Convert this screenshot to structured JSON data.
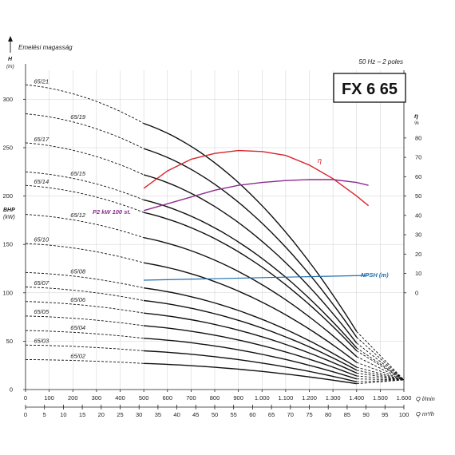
{
  "chart_data": {
    "type": "line",
    "title": "FX 6 65",
    "subtitle": "50 Hz – 2 poles",
    "y_title": "Emelési magasság",
    "y_axis_label": "H",
    "y_axis_unit": "(m)",
    "bhp_label": "BHP",
    "bhp_unit": "(kW)",
    "eta_label": "η",
    "eta_unit": "%",
    "x_axis_label": "Q l/min",
    "x2_axis_label": "Q m³/h",
    "ylim": [
      0,
      330
    ],
    "xlim": [
      0,
      1600
    ],
    "x2lim": [
      0,
      100
    ],
    "y_ticks": [
      0,
      50,
      100,
      150,
      200,
      250,
      300
    ],
    "x_ticks": [
      0,
      100,
      200,
      300,
      400,
      500,
      600,
      700,
      800,
      900,
      1000,
      1100,
      1200,
      1300,
      1400,
      1500,
      1600
    ],
    "x_tick_labels": [
      "0",
      "100",
      "200",
      "300",
      "400",
      "500",
      "600",
      "700",
      "800",
      "900",
      "1.000",
      "1.100",
      "1.200",
      "1.300",
      "1.400",
      "1.500",
      "1.600"
    ],
    "x2_ticks": [
      0,
      5,
      10,
      15,
      20,
      25,
      30,
      35,
      40,
      45,
      50,
      55,
      60,
      65,
      70,
      75,
      80,
      85,
      90,
      95,
      100
    ],
    "eta_ticks": [
      0,
      10,
      20,
      30,
      40,
      50,
      60,
      70,
      80
    ],
    "eta_scale": {
      "zero_at_H": 100,
      "H_per_percent": 2
    },
    "operating_range": {
      "q_min": 500,
      "q_max": 1400
    },
    "series": [
      {
        "name": "65/21",
        "shutoff": 315,
        "at_500": 275,
        "at_1400": 60
      },
      {
        "name": "65/19",
        "shutoff": 285,
        "at_500": 249,
        "at_1400": 54
      },
      {
        "name": "65/17",
        "shutoff": 255,
        "at_500": 222,
        "at_1400": 48
      },
      {
        "name": "65/15",
        "shutoff": 225,
        "at_500": 196,
        "at_1400": 43
      },
      {
        "name": "65/14",
        "shutoff": 211,
        "at_500": 183,
        "at_1400": 40
      },
      {
        "name": "65/12",
        "shutoff": 181,
        "at_500": 157,
        "at_1400": 34
      },
      {
        "name": "65/10",
        "shutoff": 151,
        "at_500": 131,
        "at_1400": 28
      },
      {
        "name": "65/08",
        "shutoff": 121,
        "at_500": 105,
        "at_1400": 23
      },
      {
        "name": "65/07",
        "shutoff": 106,
        "at_500": 92,
        "at_1400": 20
      },
      {
        "name": "65/06",
        "shutoff": 91,
        "at_500": 79,
        "at_1400": 17
      },
      {
        "name": "65/05",
        "shutoff": 76,
        "at_500": 66,
        "at_1400": 14
      },
      {
        "name": "65/04",
        "shutoff": 61,
        "at_500": 53,
        "at_1400": 11
      },
      {
        "name": "65/03",
        "shutoff": 46,
        "at_500": 40,
        "at_1400": 8
      },
      {
        "name": "65/02",
        "shutoff": 31,
        "at_500": 27,
        "at_1400": 6
      }
    ],
    "efficiency": {
      "name": "η",
      "color": "#d8232a",
      "x": [
        500,
        600,
        700,
        800,
        900,
        1000,
        1100,
        1200,
        1300,
        1400,
        1450
      ],
      "y": [
        54,
        63,
        69,
        72,
        73.5,
        73,
        71,
        66,
        59,
        50,
        45
      ]
    },
    "power": {
      "name": "P2 kW 100 st.",
      "color": "#8b2c8f",
      "x": [
        500,
        600,
        700,
        800,
        900,
        1000,
        1100,
        1200,
        1300,
        1400,
        1450
      ],
      "y": [
        185,
        192,
        199,
        206,
        211,
        214,
        216,
        217,
        217,
        214,
        211
      ]
    },
    "npsh": {
      "name": "NPSH (m)",
      "color": "#1f6fb2",
      "x": [
        500,
        1450
      ],
      "y": [
        113,
        118
      ]
    },
    "colors": {
      "curves": "#111111",
      "efficiency": "#d8232a",
      "power": "#8b2c8f",
      "npsh": "#1f6fb2"
    }
  }
}
